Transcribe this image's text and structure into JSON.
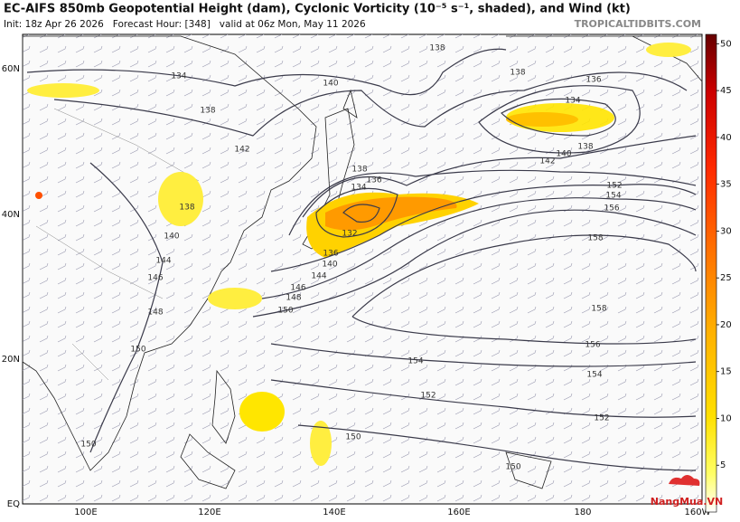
{
  "header": {
    "title": "EC-AIFS 850mb Geopotential Height (dam), Cyclonic Vorticity (10⁻⁵ s⁻¹, shaded), and Wind (kt)",
    "subtitle": "Init: 18z Apr 26 2026   Forecast Hour: [348]   valid at 06z Mon, May 11 2026",
    "brand": "TROPICALTIDBITS.COM"
  },
  "map": {
    "lat_labels": [
      "60N",
      "40N",
      "20N",
      "EQ"
    ],
    "lon_labels": [
      "100E",
      "120E",
      "140E",
      "160E",
      "180",
      "160W"
    ],
    "contour_labels": [
      "134",
      "138",
      "142",
      "140",
      "138",
      "138",
      "136",
      "134",
      "138",
      "140",
      "142",
      "138",
      "136",
      "134",
      "132",
      "136",
      "140",
      "144",
      "146",
      "148",
      "150",
      "152",
      "154",
      "156",
      "158",
      "158",
      "156",
      "154",
      "154",
      "152",
      "152",
      "150",
      "150",
      "138",
      "140",
      "144",
      "146",
      "148",
      "150",
      "150"
    ]
  },
  "colorbar": {
    "range": [
      0,
      51
    ],
    "ticks": [
      5,
      10,
      15,
      20,
      25,
      30,
      35,
      40,
      45,
      50
    ]
  },
  "watermark": "NangMua.VN"
}
